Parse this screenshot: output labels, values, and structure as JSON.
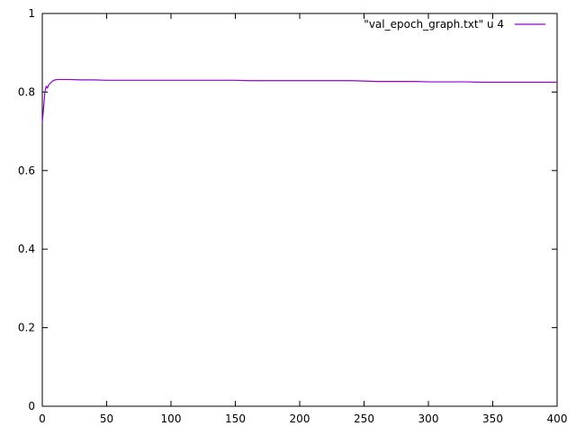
{
  "chart_data": {
    "type": "line",
    "title": "",
    "xlabel": "",
    "ylabel": "",
    "xlim": [
      0,
      400
    ],
    "ylim": [
      0,
      1
    ],
    "x_ticks": [
      0,
      50,
      100,
      150,
      200,
      250,
      300,
      350,
      400
    ],
    "y_ticks": [
      0,
      0.2,
      0.4,
      0.6,
      0.8,
      1
    ],
    "x_tick_labels": [
      "0",
      "50",
      "100",
      "150",
      "200",
      "250",
      "300",
      "350",
      "400"
    ],
    "y_tick_labels": [
      "0",
      "0.2",
      "0.4",
      "0.6",
      "0.8",
      "1"
    ],
    "grid": false,
    "legend_position": "top-right",
    "series": [
      {
        "name": "\"val_epoch_graph.txt\" u 4",
        "color": "#9400d3",
        "x": [
          0,
          1,
          2,
          3,
          4,
          5,
          6,
          7,
          8,
          10,
          12,
          15,
          20,
          30,
          40,
          50,
          60,
          70,
          80,
          90,
          100,
          110,
          120,
          130,
          140,
          150,
          160,
          170,
          180,
          190,
          200,
          210,
          220,
          230,
          240,
          250,
          260,
          270,
          280,
          290,
          300,
          310,
          320,
          330,
          340,
          350,
          360,
          370,
          380,
          390,
          400
        ],
        "y": [
          0.722,
          0.76,
          0.8,
          0.815,
          0.81,
          0.818,
          0.822,
          0.825,
          0.828,
          0.831,
          0.832,
          0.832,
          0.832,
          0.831,
          0.831,
          0.83,
          0.83,
          0.83,
          0.83,
          0.83,
          0.83,
          0.83,
          0.83,
          0.83,
          0.83,
          0.83,
          0.829,
          0.829,
          0.829,
          0.829,
          0.829,
          0.829,
          0.829,
          0.829,
          0.829,
          0.828,
          0.827,
          0.827,
          0.827,
          0.827,
          0.826,
          0.826,
          0.826,
          0.826,
          0.825,
          0.825,
          0.825,
          0.825,
          0.825,
          0.825,
          0.825
        ]
      }
    ]
  }
}
